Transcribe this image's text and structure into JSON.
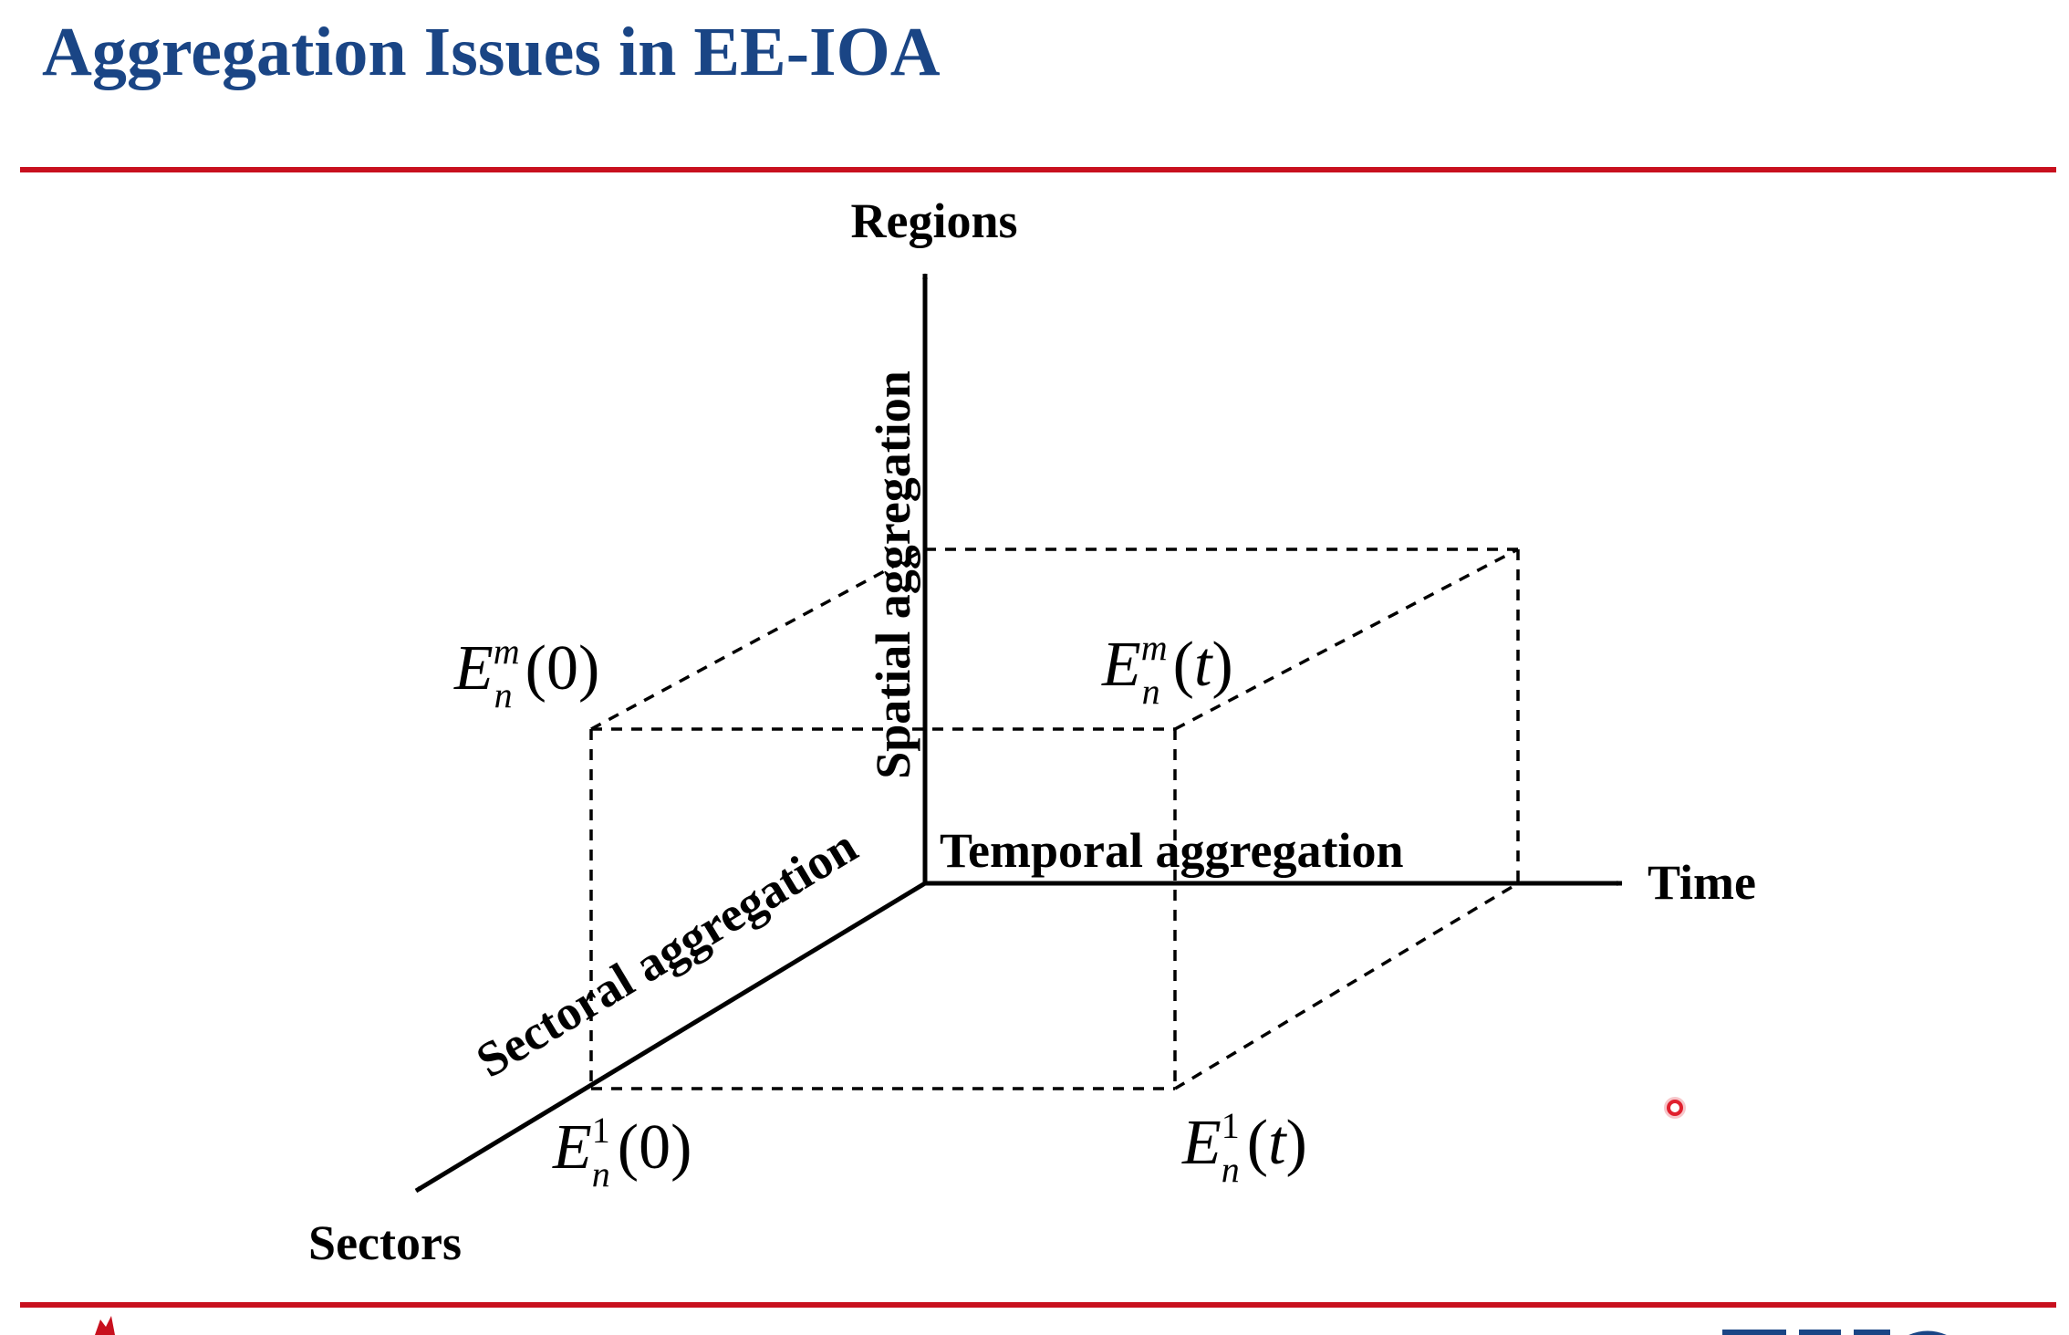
{
  "slide": {
    "title": "Aggregation Issues in EE-IOA"
  },
  "diagram": {
    "axes": {
      "regions": "Regions",
      "time": "Time",
      "sectors": "Sectors"
    },
    "aggregation_labels": {
      "spatial": "Spatial aggregation",
      "temporal": "Temporal aggregation",
      "sectoral": "Sectoral aggregation"
    },
    "corners": [
      {
        "base": "E",
        "sup": "m",
        "sub": "n",
        "arg": "0"
      },
      {
        "base": "E",
        "sup": "m",
        "sub": "n",
        "arg": "t"
      },
      {
        "base": "E",
        "sup": "1",
        "sub": "n",
        "arg": "0"
      },
      {
        "base": "E",
        "sup": "1",
        "sub": "n",
        "arg": "t"
      }
    ]
  },
  "colors": {
    "title": "#1a4585",
    "rule": "#c8101e",
    "ink": "#000000",
    "pointer": "#e0202e"
  },
  "icons": {
    "pointer": "cursor-dot-icon",
    "footer_left": "university-logo-fragment-icon",
    "footer_right": "brand-logo-fragment-icon"
  }
}
